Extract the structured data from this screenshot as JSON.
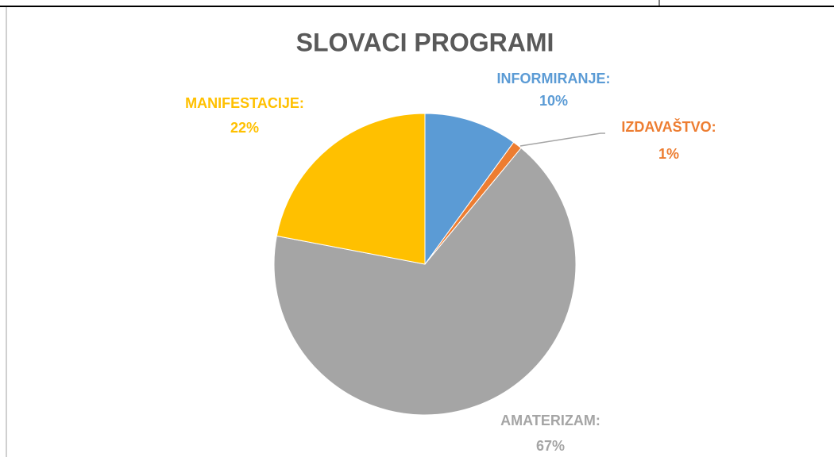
{
  "chart_data": {
    "type": "pie",
    "title": "SLOVACI PROGRAMI",
    "categories": [
      "INFORMIRANJE:",
      "IZDAVAŠTVO:",
      "AMATERIZAM:",
      "MANIFESTACIJE:"
    ],
    "values": [
      10,
      1,
      67,
      22
    ],
    "value_labels": [
      "10%",
      "1%",
      "67%",
      "22%"
    ],
    "colors": [
      "#5b9bd5",
      "#ed7d31",
      "#a5a5a5",
      "#ffc000"
    ]
  }
}
